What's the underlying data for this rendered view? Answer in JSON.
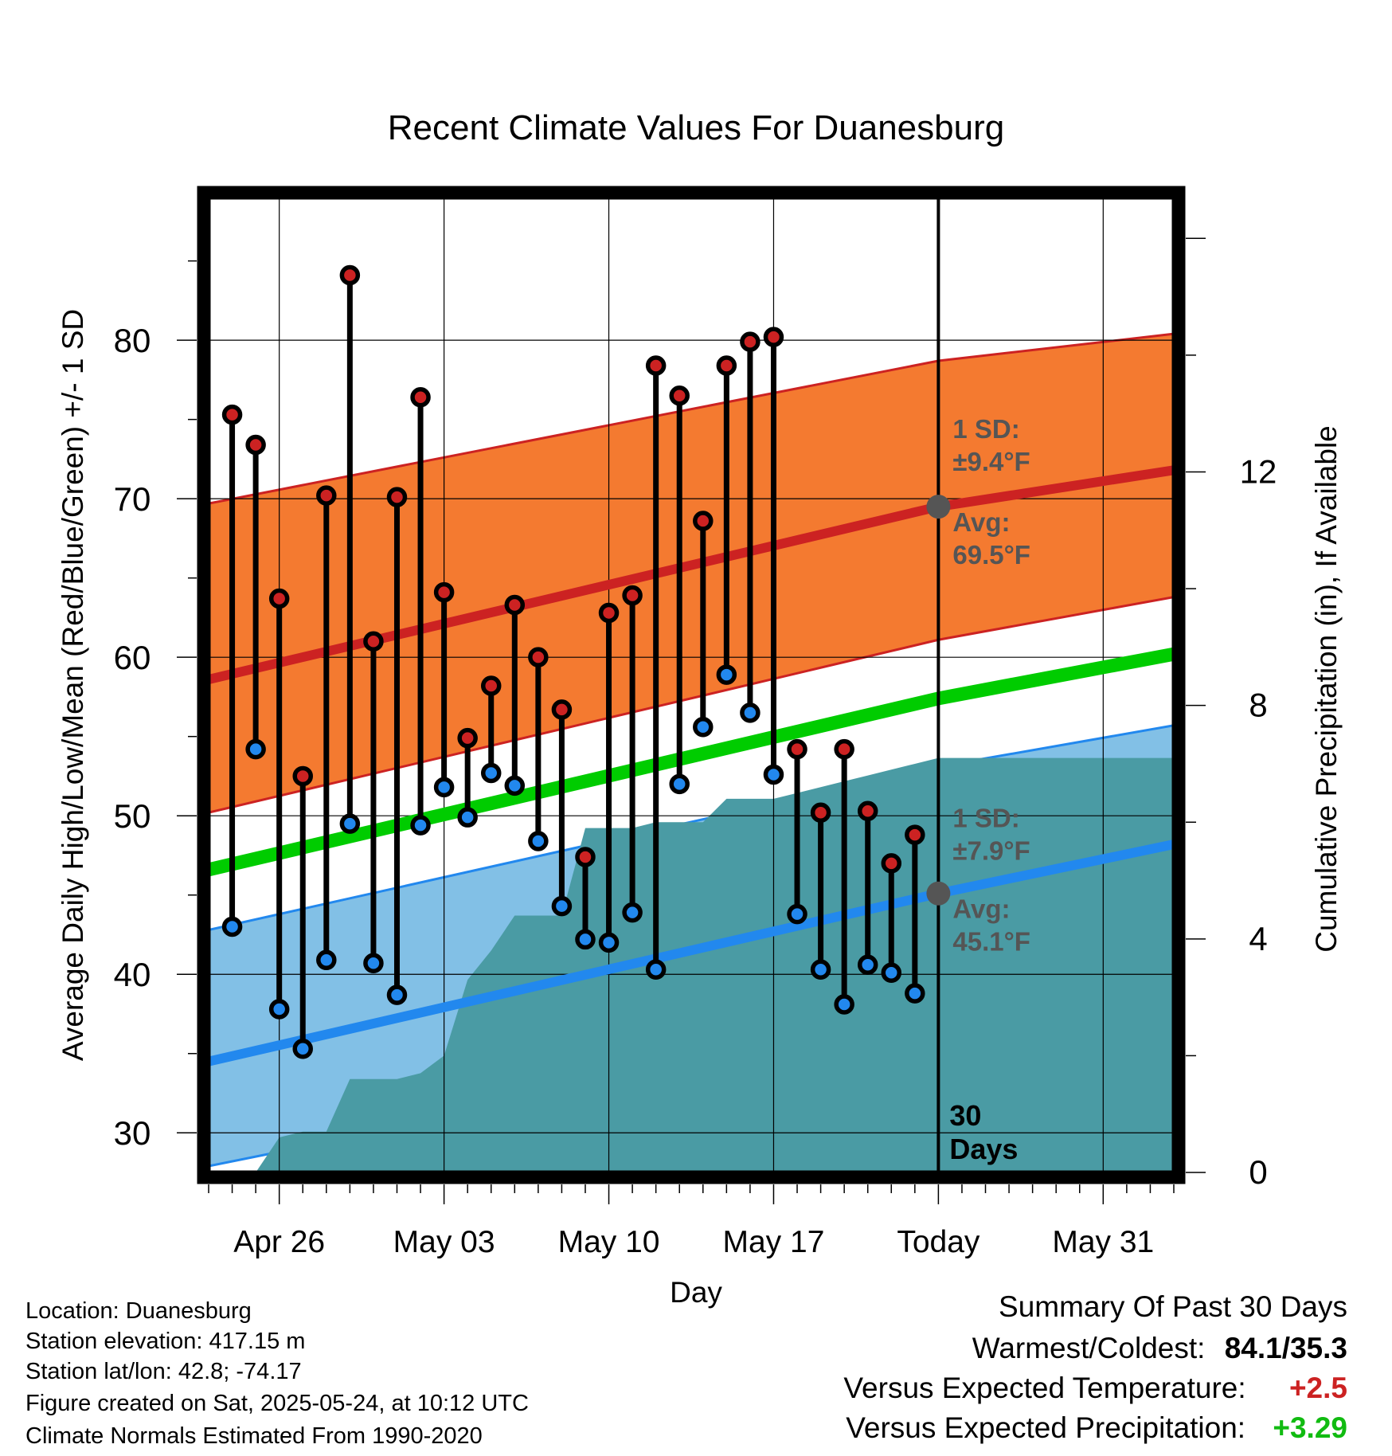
{
  "chart_data": {
    "type": "line",
    "title": "Recent Climate Values For Duanesburg",
    "xlabel": "Day",
    "ylabel": "Average Daily High/Low/Mean (Red/Blue/Green) +/- 1 SD",
    "y2label": "Cumulative Precipitation (in), If Available",
    "ylim": [
      27.5,
      89
    ],
    "y2lim": [
      0,
      16.7
    ],
    "yticks": [
      "30",
      "40",
      "50",
      "60",
      "70",
      "80"
    ],
    "y2ticks": [
      "0",
      "4",
      "8",
      "12"
    ],
    "xlim": [
      "2025-04-23",
      "2025-06-03"
    ],
    "xticks": [
      {
        "date": "2025-04-26",
        "label": "Apr 26"
      },
      {
        "date": "2025-05-03",
        "label": "May 03"
      },
      {
        "date": "2025-05-10",
        "label": "May 10"
      },
      {
        "date": "2025-05-17",
        "label": "May 17"
      },
      {
        "date": "2025-05-24",
        "label": "Today"
      },
      {
        "date": "2025-05-31",
        "label": "May 31"
      }
    ],
    "grid": true,
    "today": "2025-05-24",
    "period_label": [
      "30",
      "Days"
    ],
    "normals": {
      "dates": [
        "2025-04-23",
        "2025-05-24",
        "2025-06-03"
      ],
      "avg_high": [
        58.6,
        69.5,
        71.8
      ],
      "high_sd_upper": [
        69.7,
        78.7,
        80.4
      ],
      "high_sd_lower": [
        50.2,
        61.1,
        63.8
      ],
      "avg_mean": [
        46.6,
        57.4,
        60.2
      ],
      "avg_low": [
        34.5,
        45.1,
        48.2
      ],
      "low_sd_upper": [
        42.8,
        53.1,
        55.7
      ],
      "low_sd_lower": [
        27.9,
        37.2,
        39.8
      ]
    },
    "high_annotation": {
      "sd": [
        "1 SD:",
        "±9.4°F"
      ],
      "avg": [
        "Avg:",
        "69.5°F"
      ]
    },
    "low_annotation": {
      "sd": [
        "1 SD:",
        "±7.9°F"
      ],
      "avg": [
        "Avg:",
        "45.1°F"
      ]
    },
    "series": [
      {
        "name": "Daily High",
        "color": "#cc2222",
        "dates": [
          "2025-04-24",
          "2025-04-25",
          "2025-04-26",
          "2025-04-27",
          "2025-04-28",
          "2025-04-29",
          "2025-04-30",
          "2025-05-01",
          "2025-05-02",
          "2025-05-03",
          "2025-05-04",
          "2025-05-05",
          "2025-05-06",
          "2025-05-07",
          "2025-05-08",
          "2025-05-09",
          "2025-05-10",
          "2025-05-11",
          "2025-05-12",
          "2025-05-13",
          "2025-05-14",
          "2025-05-15",
          "2025-05-16",
          "2025-05-17",
          "2025-05-18",
          "2025-05-19",
          "2025-05-20",
          "2025-05-21",
          "2025-05-22",
          "2025-05-23"
        ],
        "values": [
          75.3,
          73.4,
          63.7,
          52.5,
          70.2,
          84.1,
          61.0,
          70.1,
          76.4,
          64.1,
          54.9,
          58.2,
          63.3,
          60.0,
          56.7,
          47.4,
          62.8,
          63.9,
          78.4,
          76.5,
          68.6,
          78.4,
          79.9,
          80.2,
          54.2,
          50.2,
          54.2,
          50.3,
          47.0,
          48.8
        ]
      },
      {
        "name": "Daily Low",
        "color": "#2288ee",
        "dates": [
          "2025-04-24",
          "2025-04-25",
          "2025-04-26",
          "2025-04-27",
          "2025-04-28",
          "2025-04-29",
          "2025-04-30",
          "2025-05-01",
          "2025-05-02",
          "2025-05-03",
          "2025-05-04",
          "2025-05-05",
          "2025-05-06",
          "2025-05-07",
          "2025-05-08",
          "2025-05-09",
          "2025-05-10",
          "2025-05-11",
          "2025-05-12",
          "2025-05-13",
          "2025-05-14",
          "2025-05-15",
          "2025-05-16",
          "2025-05-17",
          "2025-05-18",
          "2025-05-19",
          "2025-05-20",
          "2025-05-21",
          "2025-05-22",
          "2025-05-23"
        ],
        "values": [
          43.0,
          54.2,
          37.8,
          35.3,
          40.9,
          49.5,
          40.7,
          38.7,
          49.4,
          51.8,
          49.9,
          52.7,
          51.9,
          48.4,
          44.3,
          42.2,
          42.0,
          43.9,
          40.3,
          52.0,
          55.6,
          58.9,
          56.5,
          52.6,
          43.8,
          40.3,
          38.1,
          40.6,
          40.1,
          38.8
        ]
      },
      {
        "name": "Cumulative Precipitation",
        "color": "#4a9ba4",
        "axis": "y2",
        "dates": [
          "2025-04-25",
          "2025-04-26",
          "2025-04-27",
          "2025-04-28",
          "2025-04-29",
          "2025-04-30",
          "2025-05-01",
          "2025-05-02",
          "2025-05-03",
          "2025-05-04",
          "2025-05-05",
          "2025-05-06",
          "2025-05-07",
          "2025-05-08",
          "2025-05-09",
          "2025-05-10",
          "2025-05-11",
          "2025-05-12",
          "2025-05-13",
          "2025-05-14",
          "2025-05-15",
          "2025-05-16",
          "2025-05-17",
          "2025-05-18",
          "2025-05-19",
          "2025-05-20",
          "2025-05-21",
          "2025-05-22",
          "2025-05-23",
          "2025-05-24",
          "2025-06-03"
        ],
        "values": [
          0.0,
          0.6,
          0.7,
          0.7,
          1.6,
          1.6,
          1.6,
          1.7,
          2.0,
          3.3,
          3.8,
          4.4,
          4.4,
          4.4,
          5.9,
          5.9,
          5.9,
          6.0,
          6.0,
          6.0,
          6.4,
          6.4,
          6.4,
          6.5,
          6.6,
          6.7,
          6.8,
          6.9,
          7.0,
          7.1,
          7.1
        ]
      }
    ]
  },
  "info": {
    "location": "Location: Duanesburg",
    "elevation": "Station elevation: 417.15 m",
    "latlon": "Station lat/lon: 42.8; -74.17",
    "created": "Figure created on Sat, 2025-05-24, at 10:12 UTC",
    "normals": "Climate Normals Estimated From 1990-2020"
  },
  "summary": {
    "title": "Summary Of Past 30 Days",
    "warm_cold_label": "Warmest/Coldest:",
    "warm_cold_value": "84.1/35.3",
    "temp_label": "Versus Expected Temperature:",
    "temp_value": "+2.5",
    "temp_color": "#cc2222",
    "precip_label": "Versus Expected Precipitation:",
    "precip_value": "+3.29",
    "precip_color": "#11bb11"
  }
}
